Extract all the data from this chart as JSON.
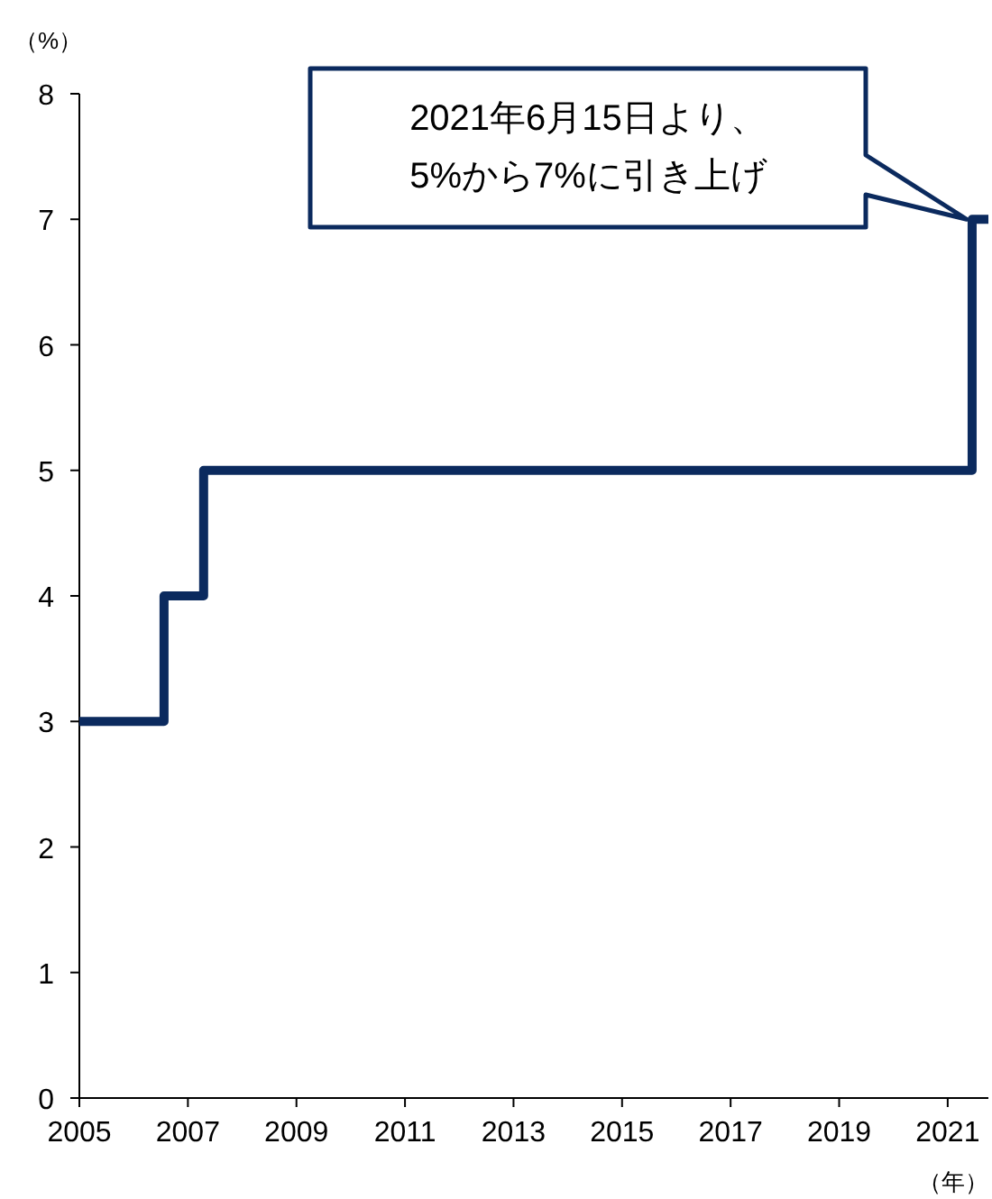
{
  "chart_data": {
    "type": "step",
    "ylabel": "（%）",
    "xlabel": "（年）",
    "x": [
      2005,
      2006.56,
      2007.29,
      2021.45,
      2021.75
    ],
    "values": [
      3,
      4,
      5,
      7,
      7
    ],
    "color": "#0b2a5e",
    "xlim": [
      2005,
      2021.75
    ],
    "xticks": [
      2005,
      2007,
      2009,
      2011,
      2013,
      2015,
      2017,
      2019,
      2021
    ],
    "ylim": [
      0,
      8
    ],
    "yticks": [
      0,
      1,
      2,
      3,
      4,
      5,
      6,
      7,
      8
    ],
    "annotations": [
      "2021年6月15日より、5%から7%に引き上げ"
    ]
  }
}
